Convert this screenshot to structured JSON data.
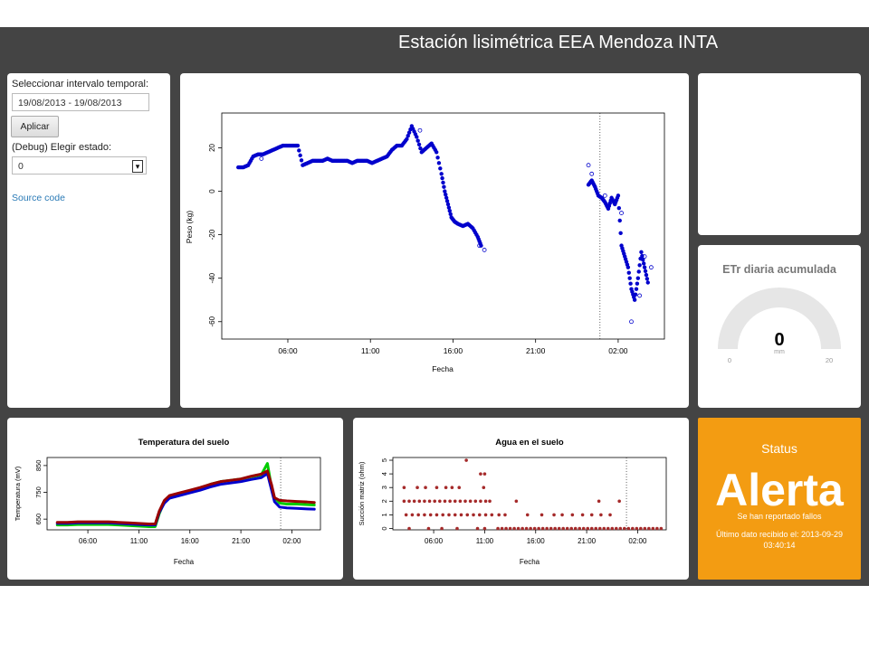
{
  "header": {
    "title": "Estación lisimétrica EEA Mendoza INTA"
  },
  "sidebar": {
    "interval_label": "Seleccionar intervalo temporal:",
    "date_range": "19/08/2013 - 19/08/2013",
    "apply_label": "Aplicar",
    "state_label": "(Debug) Elegir estado:",
    "state_value": "0",
    "source_link": "Source code"
  },
  "main_chart": {
    "chart_data": {
      "type": "scatter",
      "title": "",
      "xlabel": "Fecha",
      "ylabel": "Peso (kg)",
      "x_ticks": [
        "06:00",
        "11:00",
        "16:00",
        "21:00",
        "02:00"
      ],
      "y_ticks": [
        "20",
        "0",
        "-20",
        "-40",
        "-60"
      ],
      "ylim": [
        -68,
        36
      ],
      "xlim_hours": [
        2.0,
        28.8
      ],
      "vline_hour": 24.9,
      "series": [
        {
          "marker": "filled",
          "color": "#0000cc",
          "x": [
            3.0,
            3.3,
            3.6,
            3.9,
            4.2,
            4.5,
            4.8,
            5.1,
            5.4,
            5.7,
            6.0,
            6.3,
            6.6,
            6.9,
            7.2,
            7.5,
            7.8,
            8.1,
            8.4,
            8.7,
            9.0,
            9.3,
            9.6,
            9.9,
            10.2,
            10.5,
            10.8,
            11.1,
            11.4,
            11.7,
            12.0,
            12.3,
            12.6,
            12.9,
            13.2,
            13.5,
            13.8,
            14.1,
            14.4,
            14.7,
            15.0,
            15.3,
            15.5,
            15.7,
            15.9,
            16.1,
            16.3,
            16.6,
            16.9,
            17.2,
            17.5,
            17.7,
            24.2,
            24.4,
            24.6,
            24.8,
            25.0,
            25.2,
            25.4,
            25.6,
            25.8,
            26.0,
            26.2,
            26.4,
            26.6,
            26.8,
            27.0,
            27.2,
            27.4,
            27.6,
            27.8
          ],
          "y": [
            11,
            11,
            12,
            16,
            17,
            17,
            18,
            19,
            20,
            21,
            21,
            21,
            21,
            12,
            13,
            14,
            14,
            14,
            15,
            14,
            14,
            14,
            14,
            13,
            14,
            14,
            14,
            13,
            14,
            15,
            16,
            19,
            21,
            21,
            24,
            30,
            25,
            18,
            20,
            22,
            18,
            8,
            0,
            -6,
            -12,
            -14,
            -15,
            -16,
            -15,
            -17,
            -21,
            -25,
            3,
            5,
            2,
            -2,
            -3,
            -5,
            -8,
            -3,
            -6,
            -2,
            -25,
            -30,
            -35,
            -45,
            -50,
            -40,
            -28,
            -35,
            -42
          ],
          "size": [
            2.4
          ]
        },
        {
          "marker": "open",
          "color": "#0000cc",
          "x": [
            4.4,
            14.0,
            17.6,
            17.9,
            24.2,
            24.4,
            25.2,
            26.2,
            26.8,
            27.3,
            27.6,
            28.0
          ],
          "y": [
            15,
            28,
            -25,
            -27,
            12,
            8,
            -2,
            -10,
            -60,
            -48,
            -30,
            -35
          ]
        }
      ]
    }
  },
  "etr": {
    "title": "ETr diaria acumulada",
    "value": "0",
    "unit": "mm",
    "min_label": "0",
    "max_label": "20",
    "fill_fraction": 0,
    "colors": {
      "track": "#e6e6e6"
    }
  },
  "temp_chart": {
    "chart_data": {
      "type": "line",
      "title": "Temperatura del suelo",
      "xlabel": "Fecha",
      "ylabel": "Temperatura (mV)",
      "x_ticks": [
        "06:00",
        "11:00",
        "16:00",
        "21:00",
        "02:00"
      ],
      "y_ticks": [
        "650",
        "750",
        "850"
      ],
      "ylim": [
        610,
        880
      ],
      "xlim_hours": [
        2.0,
        28.8
      ],
      "vline_hour": 24.9,
      "x": [
        3,
        4,
        5,
        6,
        7,
        8,
        9,
        10,
        11,
        12,
        12.6,
        13.0,
        13.5,
        14,
        15,
        16,
        17,
        18,
        19,
        20,
        21,
        22,
        23,
        23.6,
        24.0,
        24.3,
        24.8,
        25.5,
        26.5,
        27.5,
        28.2
      ],
      "series": [
        {
          "color": "#00cc00",
          "values": [
            628,
            628,
            630,
            630,
            630,
            630,
            628,
            626,
            624,
            622,
            622,
            670,
            715,
            735,
            745,
            755,
            765,
            780,
            790,
            795,
            800,
            808,
            815,
            858,
            770,
            730,
            710,
            706,
            706,
            704,
            703
          ]
        },
        {
          "color": "#0000cc",
          "values": [
            634,
            634,
            636,
            636,
            636,
            636,
            634,
            632,
            630,
            628,
            628,
            675,
            710,
            728,
            738,
            748,
            758,
            770,
            780,
            785,
            790,
            798,
            805,
            820,
            760,
            715,
            695,
            692,
            690,
            688,
            687
          ]
        },
        {
          "color": "#990000",
          "values": [
            638,
            638,
            640,
            640,
            640,
            640,
            638,
            636,
            634,
            632,
            632,
            680,
            720,
            738,
            748,
            758,
            768,
            780,
            790,
            795,
            800,
            810,
            818,
            830,
            780,
            730,
            720,
            718,
            716,
            714,
            712
          ]
        }
      ]
    }
  },
  "water_chart": {
    "chart_data": {
      "type": "scatter",
      "title": "Agua en el suelo",
      "xlabel": "Fecha",
      "ylabel": "Succión matriz (ohm)",
      "x_ticks": [
        "06:00",
        "11:00",
        "16:00",
        "21:00",
        "02:00"
      ],
      "y_ticks": [
        "0",
        "1",
        "2",
        "3",
        "4",
        "5"
      ],
      "ylim": [
        -0.1,
        5.2
      ],
      "xlim_hours": [
        2.0,
        28.8
      ],
      "vline_hour": 24.9,
      "color": "#a52a2a",
      "points": [
        [
          3.1,
          3
        ],
        [
          4.4,
          3
        ],
        [
          5.2,
          3
        ],
        [
          6.3,
          3
        ],
        [
          7.2,
          3
        ],
        [
          7.8,
          3
        ],
        [
          8.5,
          3
        ],
        [
          9.2,
          5
        ],
        [
          10.6,
          4
        ],
        [
          11.0,
          4
        ],
        [
          10.9,
          3
        ],
        [
          3.1,
          2
        ],
        [
          3.6,
          2
        ],
        [
          4.1,
          2
        ],
        [
          4.6,
          2
        ],
        [
          5.1,
          2
        ],
        [
          5.6,
          2
        ],
        [
          6.1,
          2
        ],
        [
          6.6,
          2
        ],
        [
          7.1,
          2
        ],
        [
          7.6,
          2
        ],
        [
          8.1,
          2
        ],
        [
          8.6,
          2
        ],
        [
          9.1,
          2
        ],
        [
          9.6,
          2
        ],
        [
          10.1,
          2
        ],
        [
          10.6,
          2
        ],
        [
          11.1,
          2
        ],
        [
          11.5,
          2
        ],
        [
          14.1,
          2
        ],
        [
          22.2,
          2
        ],
        [
          24.2,
          2
        ],
        [
          3.3,
          1
        ],
        [
          3.9,
          1
        ],
        [
          4.5,
          1
        ],
        [
          5.1,
          1
        ],
        [
          5.7,
          1
        ],
        [
          6.3,
          1
        ],
        [
          6.9,
          1
        ],
        [
          7.5,
          1
        ],
        [
          8.1,
          1
        ],
        [
          8.7,
          1
        ],
        [
          9.3,
          1
        ],
        [
          9.9,
          1
        ],
        [
          10.5,
          1
        ],
        [
          11.1,
          1
        ],
        [
          11.7,
          1
        ],
        [
          12.4,
          1
        ],
        [
          13.0,
          1
        ],
        [
          15.2,
          1
        ],
        [
          16.6,
          1
        ],
        [
          17.8,
          1
        ],
        [
          18.6,
          1
        ],
        [
          19.6,
          1
        ],
        [
          20.6,
          1
        ],
        [
          21.5,
          1
        ],
        [
          22.4,
          1
        ],
        [
          23.3,
          1
        ],
        [
          3.6,
          0
        ],
        [
          5.5,
          0
        ],
        [
          6.8,
          0
        ],
        [
          8.3,
          0
        ],
        [
          10.3,
          0
        ],
        [
          11.0,
          0
        ],
        [
          12.3,
          0
        ],
        [
          12.7,
          0
        ],
        [
          13.1,
          0
        ],
        [
          13.5,
          0
        ],
        [
          13.9,
          0
        ],
        [
          14.3,
          0
        ],
        [
          14.7,
          0
        ],
        [
          15.1,
          0
        ],
        [
          15.5,
          0
        ],
        [
          15.9,
          0
        ],
        [
          16.3,
          0
        ],
        [
          16.7,
          0
        ],
        [
          17.1,
          0
        ],
        [
          17.5,
          0
        ],
        [
          17.9,
          0
        ],
        [
          18.3,
          0
        ],
        [
          18.7,
          0
        ],
        [
          19.1,
          0
        ],
        [
          19.5,
          0
        ],
        [
          19.9,
          0
        ],
        [
          20.3,
          0
        ],
        [
          20.7,
          0
        ],
        [
          21.1,
          0
        ],
        [
          21.5,
          0
        ],
        [
          21.9,
          0
        ],
        [
          22.3,
          0
        ],
        [
          22.7,
          0
        ],
        [
          23.1,
          0
        ],
        [
          23.5,
          0
        ],
        [
          23.9,
          0
        ],
        [
          24.3,
          0
        ],
        [
          24.7,
          0
        ],
        [
          25.1,
          0
        ],
        [
          25.5,
          0
        ],
        [
          25.9,
          0
        ],
        [
          26.3,
          0
        ],
        [
          26.7,
          0
        ],
        [
          27.1,
          0
        ],
        [
          27.5,
          0
        ],
        [
          27.9,
          0
        ],
        [
          28.3,
          0
        ]
      ]
    }
  },
  "status": {
    "title": "Status",
    "state": "Alerta",
    "message": "Se han reportado fallos",
    "last_data": "Último dato recibido el: 2013-09-29 03:40:14",
    "color": "#f39c12"
  }
}
